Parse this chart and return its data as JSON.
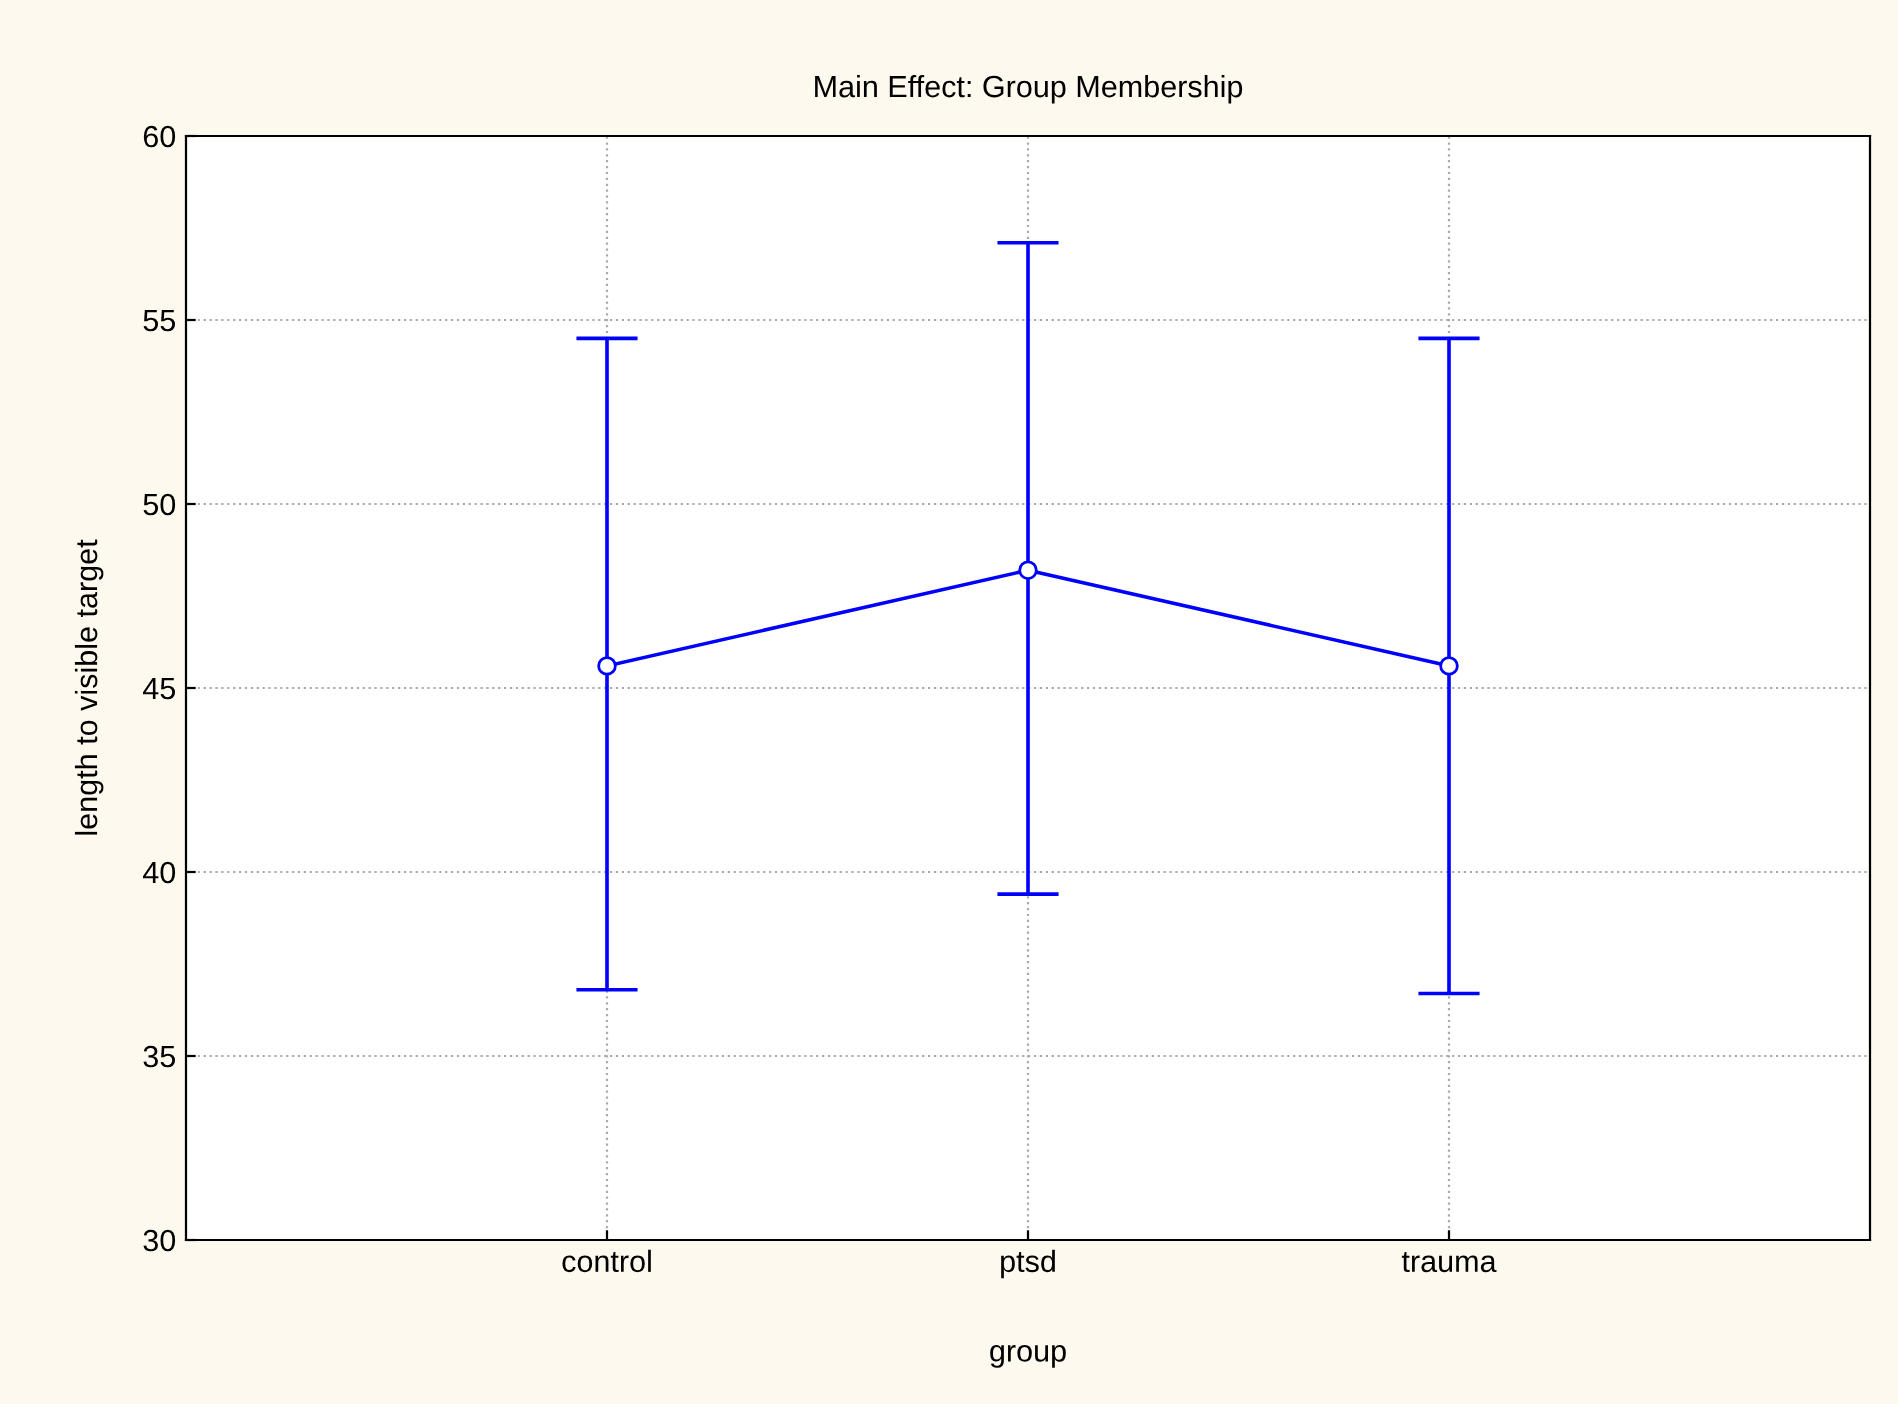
{
  "chart_data": {
    "type": "line",
    "title": "Main Effect: Group Membership",
    "xlabel": "group",
    "ylabel": "length to visible target",
    "categories": [
      "control",
      "ptsd",
      "trauma"
    ],
    "series": [
      {
        "color": "#0000ff",
        "values": [
          45.6,
          48.2,
          45.6
        ],
        "errors": [
          [
            36.8,
            54.5
          ],
          [
            39.4,
            57.1
          ],
          [
            36.7,
            54.5
          ]
        ]
      }
    ],
    "ylim": [
      30,
      60
    ],
    "yticks": [
      30,
      35,
      40,
      45,
      50,
      55,
      60
    ],
    "grid": true,
    "marker": "circle",
    "line_style": "solid"
  }
}
